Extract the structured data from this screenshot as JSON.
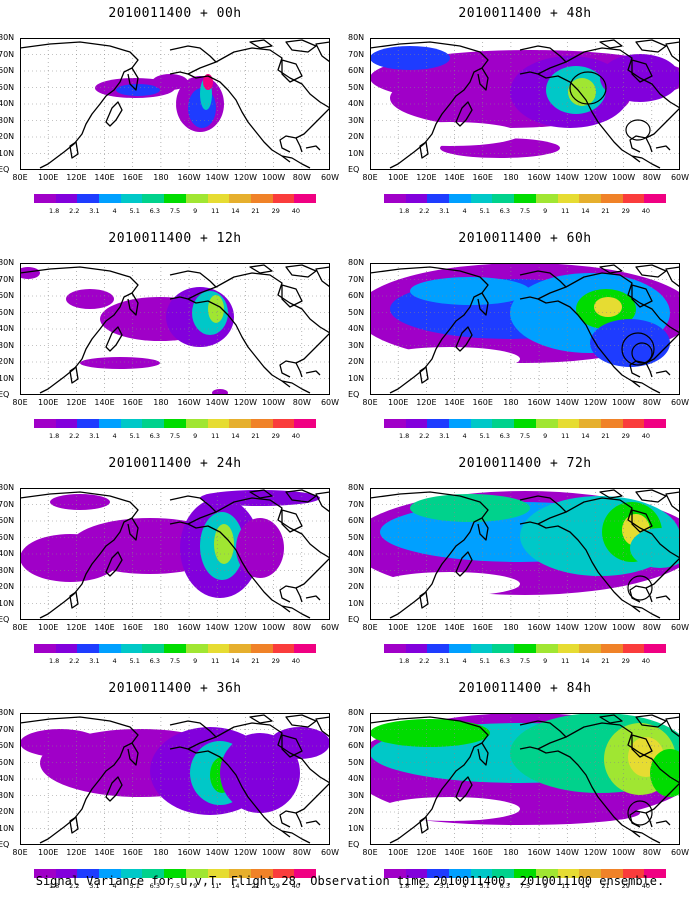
{
  "caption": "Signal Variance for u,v,T. Flight 28. Observation time 2010011400. 2010011100 ensemble.",
  "lat_labels": [
    "80N",
    "70N",
    "60N",
    "50N",
    "40N",
    "30N",
    "20N",
    "10N",
    "EQ"
  ],
  "lon_labels": [
    "80E",
    "100E",
    "120E",
    "140E",
    "160E",
    "180",
    "160W",
    "140W",
    "120W",
    "100W",
    "80W",
    "60W"
  ],
  "colorbar": {
    "labels": [
      "1.8",
      "2.2",
      "3.1",
      "4",
      "5.1",
      "6.3",
      "7.5",
      "9",
      "11",
      "14",
      "21",
      "29",
      "40"
    ],
    "colors": [
      "#a000c8",
      "#8200dc",
      "#1e3cff",
      "#00a0ff",
      "#00c8c8",
      "#00d28c",
      "#00dc00",
      "#a0e632",
      "#e6dc32",
      "#e6af2d",
      "#f08228",
      "#fa3c3c",
      "#f00082"
    ]
  },
  "panels": [
    {
      "title": "2010011400 + 00h",
      "intensity": 0
    },
    {
      "title": "2010011400 + 12h",
      "intensity": 1
    },
    {
      "title": "2010011400 + 24h",
      "intensity": 2
    },
    {
      "title": "2010011400 + 36h",
      "intensity": 3
    },
    {
      "title": "2010011400 + 48h",
      "intensity": 4
    },
    {
      "title": "2010011400 + 60h",
      "intensity": 5
    },
    {
      "title": "2010011400 + 72h",
      "intensity": 6
    },
    {
      "title": "2010011400 + 84h",
      "intensity": 7
    }
  ]
}
